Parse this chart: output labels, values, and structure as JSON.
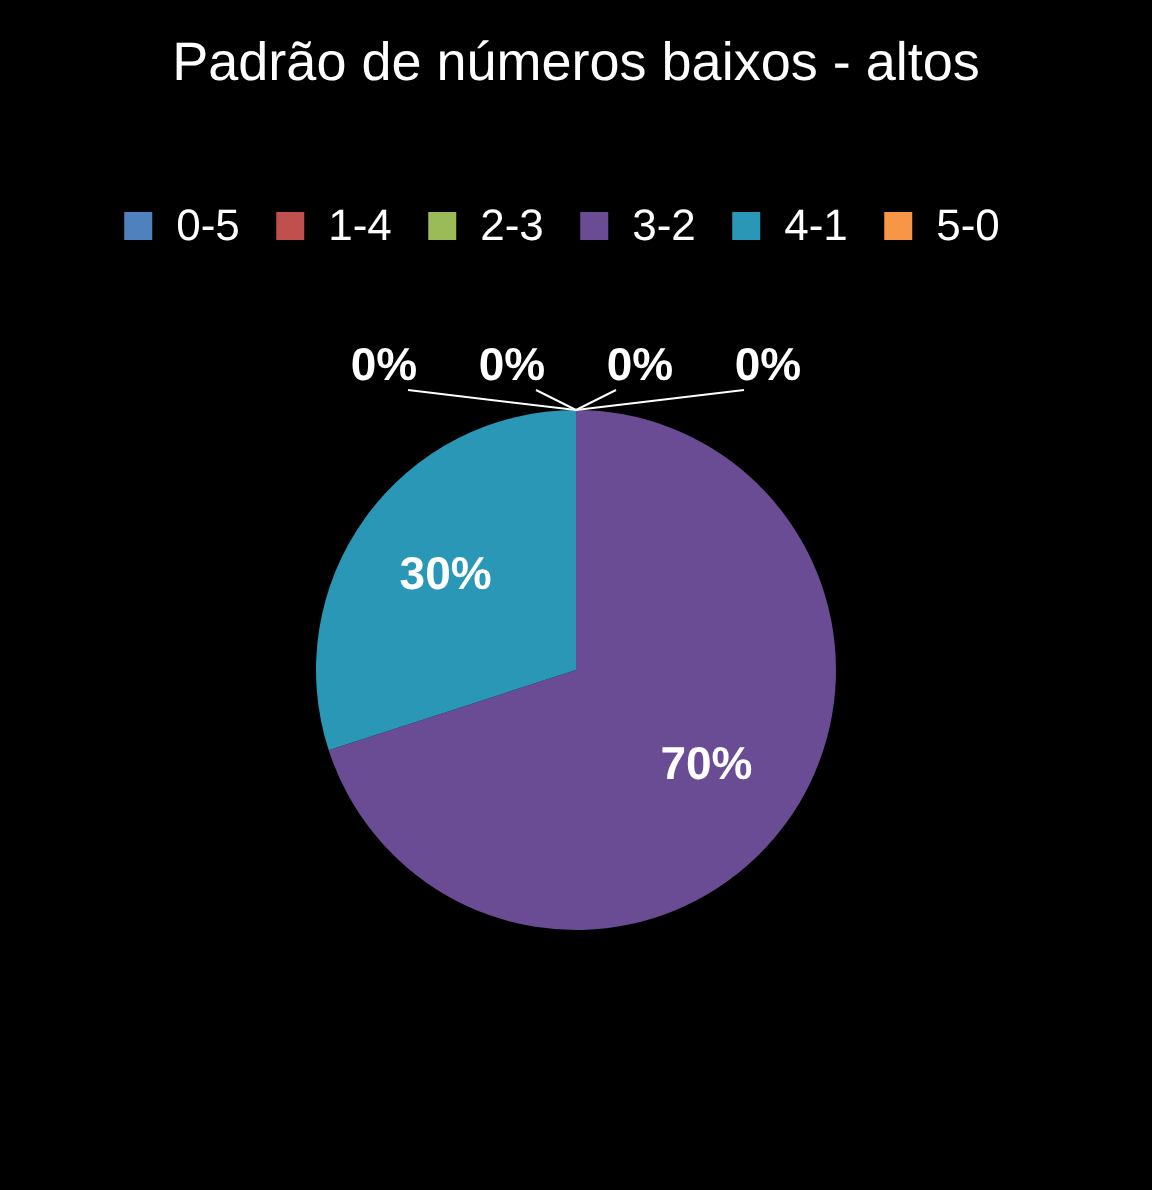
{
  "chart_data": {
    "type": "pie",
    "title": "Padrão de números baixos - altos",
    "categories": [
      "0-5",
      "1-4",
      "2-3",
      "3-2",
      "4-1",
      "5-0"
    ],
    "values": [
      0,
      0,
      0,
      70,
      30,
      0
    ],
    "colors": [
      "#4f81bd",
      "#c0504d",
      "#9bbb59",
      "#6a4c94",
      "#2a97b6",
      "#f79646"
    ],
    "value_labels": [
      "0%",
      "0%",
      "0%",
      "70%",
      "30%",
      "0%"
    ],
    "legend": "top"
  }
}
